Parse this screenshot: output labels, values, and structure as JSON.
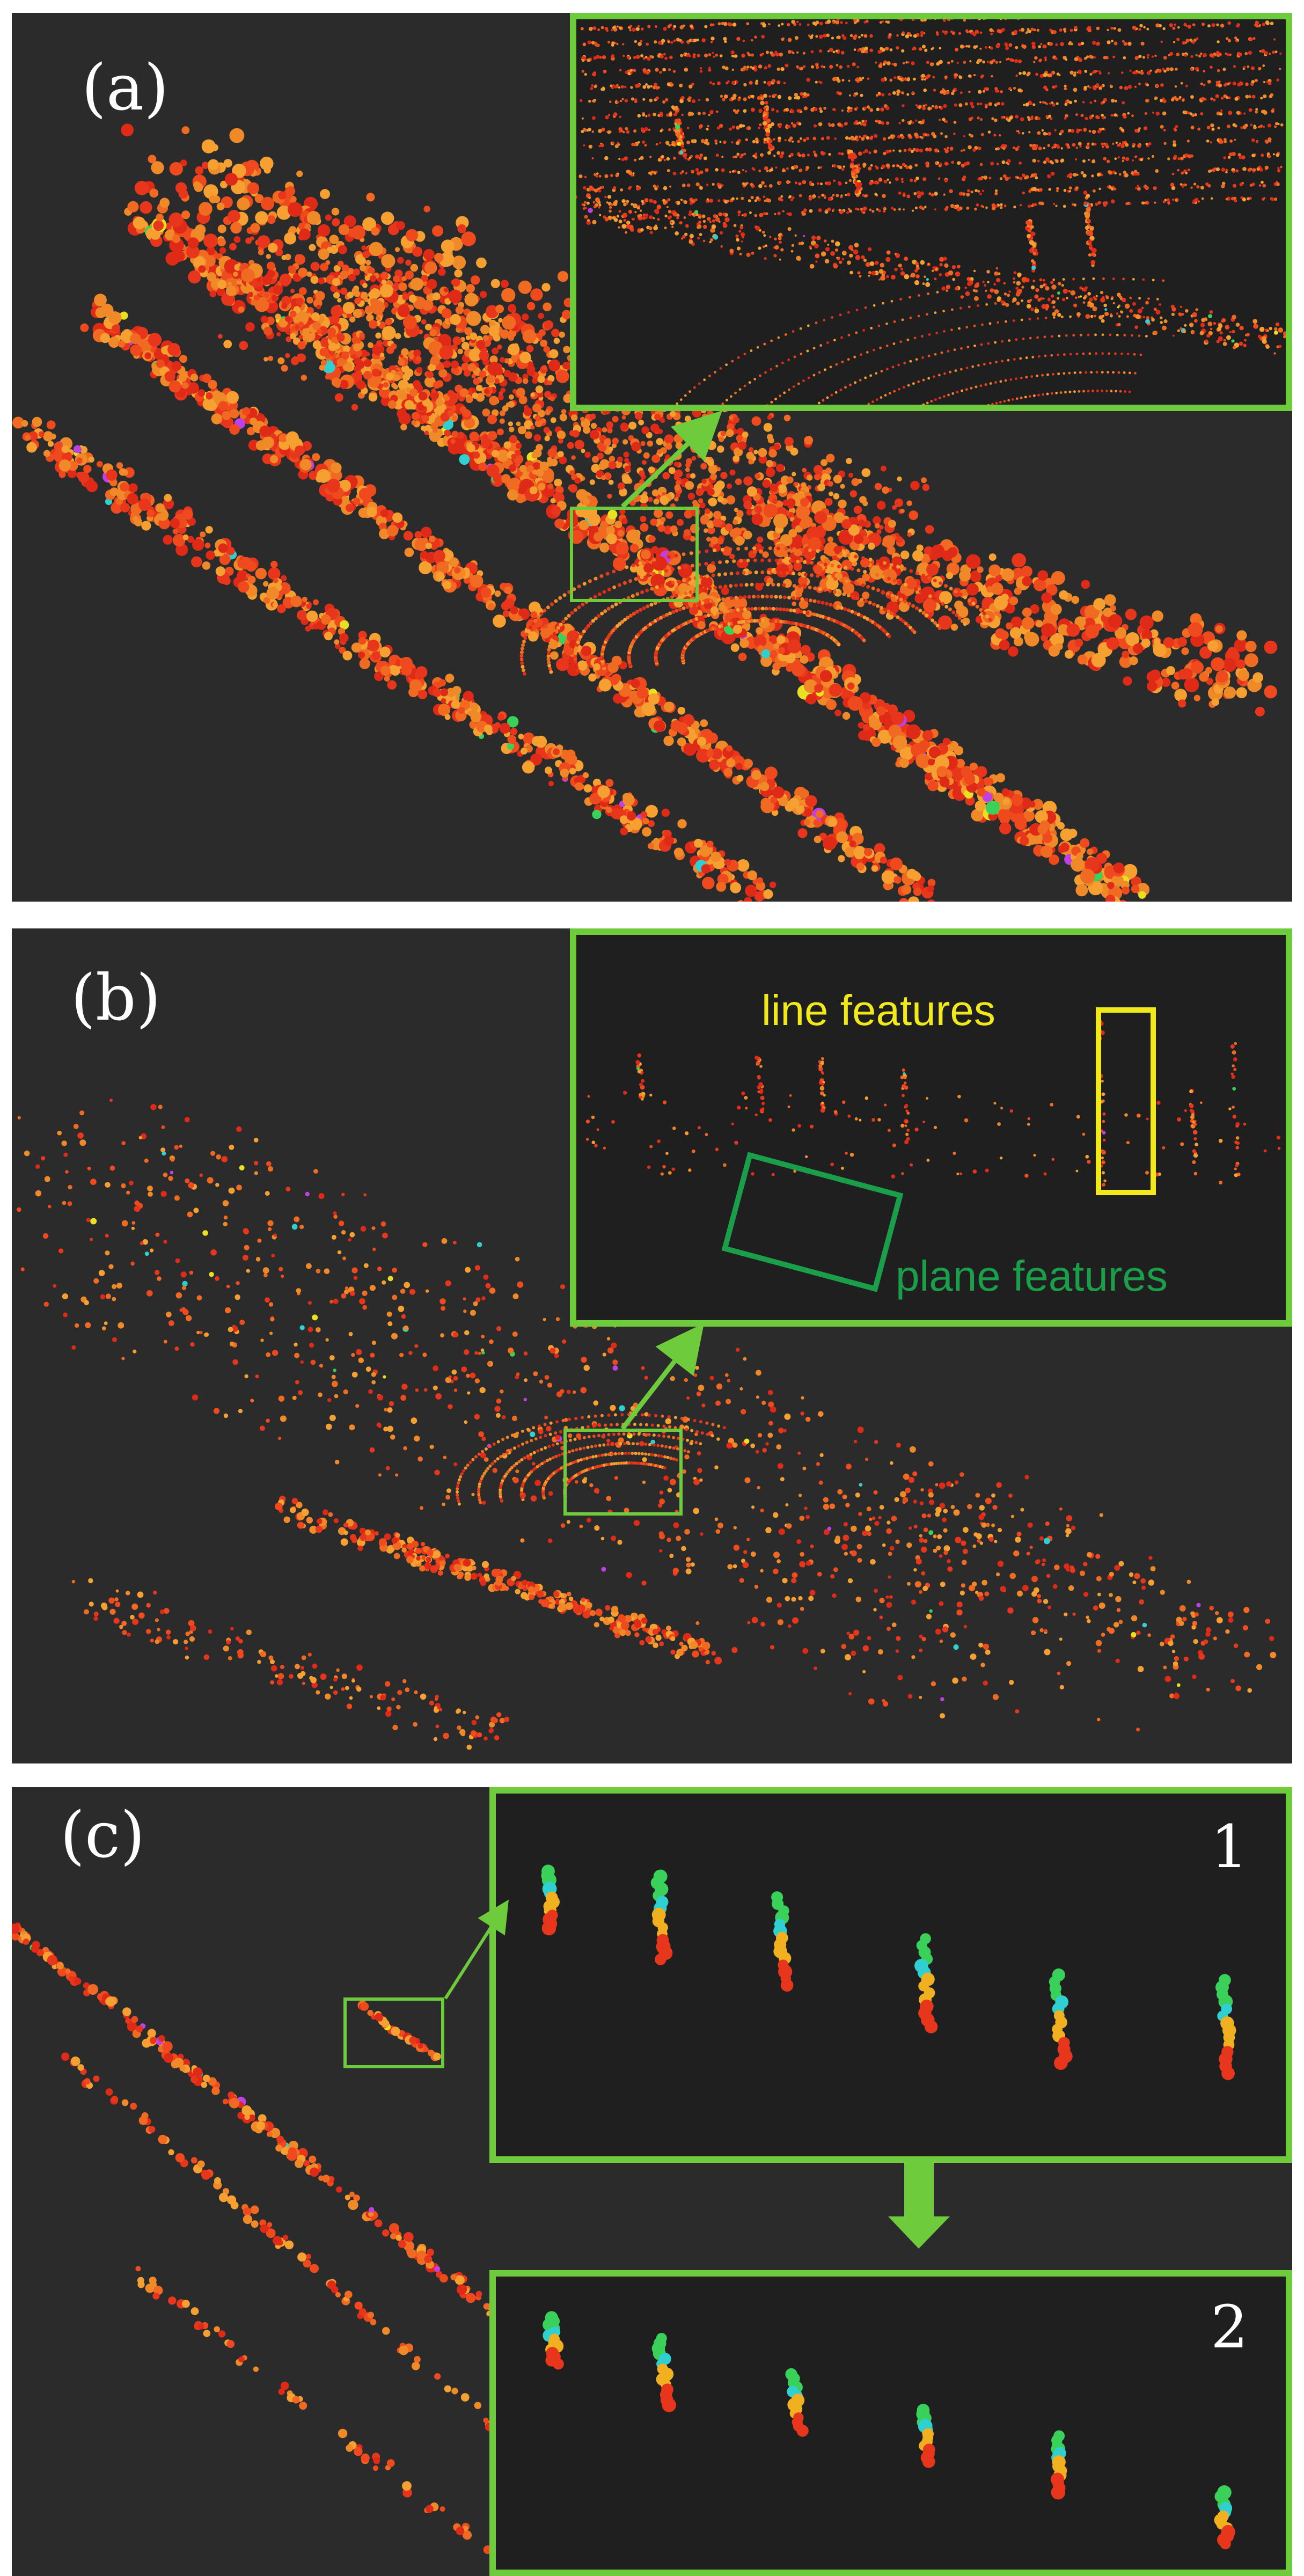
{
  "panels": {
    "a": {
      "label": "(a)"
    },
    "b": {
      "label": "(b)",
      "line_features": "line features",
      "plane_features": "plane features"
    },
    "c": {
      "label": "(c)",
      "inset1_label": "1",
      "inset2_label": "2"
    }
  },
  "colors": {
    "background": "#2b2b2b",
    "frame": "#6ecb3c",
    "line_feature_box": "#f2e91a",
    "line_feature_text": "#f2e91a",
    "plane_feature_box": "#1a9e4a",
    "plane_feature_text": "#1a9e4a",
    "points_primary": "#e8361c",
    "points_secondary": "#f08a28"
  }
}
